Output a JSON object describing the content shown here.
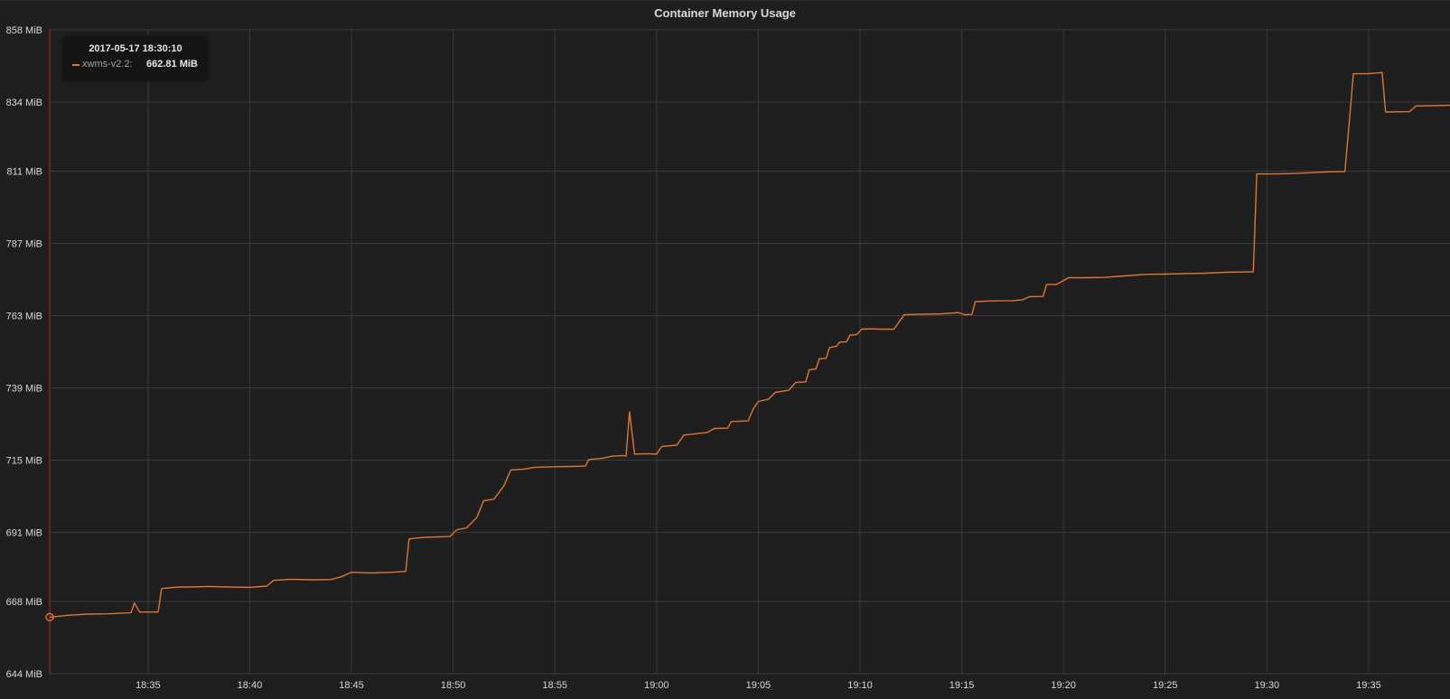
{
  "panel": {
    "title": "Container Memory Usage"
  },
  "colors": {
    "background": "#1f1e1f",
    "grid": "#3b3b3d",
    "axis_text": "#d8d9da",
    "series": "#e0752d",
    "threshold": "#b4202a"
  },
  "tooltip": {
    "time": "2017-05-17 18:30:10",
    "series_label": "xwms-v2.2:",
    "value": "662.81 MiB"
  },
  "chart_data": {
    "type": "line",
    "title": "Container Memory Usage",
    "xlabel": "",
    "ylabel": "",
    "y_unit": "MiB",
    "ylim": [
      644,
      858
    ],
    "xlim": [
      "18:30:10",
      "19:39:00"
    ],
    "grid": true,
    "legend": "hidden",
    "y_ticks": [
      "644 MiB",
      "668 MiB",
      "691 MiB",
      "715 MiB",
      "739 MiB",
      "763 MiB",
      "787 MiB",
      "811 MiB",
      "834 MiB",
      "858 MiB"
    ],
    "y_tick_values": [
      644,
      668,
      691,
      715,
      739,
      763,
      787,
      811,
      834,
      858
    ],
    "x_ticks": [
      "18:35",
      "18:40",
      "18:45",
      "18:50",
      "18:55",
      "19:00",
      "19:05",
      "19:10",
      "19:15",
      "19:20",
      "19:25",
      "19:30",
      "19:35"
    ],
    "series": [
      {
        "name": "xwms-v2.2",
        "points": [
          [
            "18:30:10",
            662.8
          ],
          [
            "18:31:00",
            663.4
          ],
          [
            "18:32:00",
            663.8
          ],
          [
            "18:33:00",
            663.9
          ],
          [
            "18:34:00",
            664.2
          ],
          [
            "18:34:10",
            664.3
          ],
          [
            "18:34:20",
            667.5
          ],
          [
            "18:34:35",
            664.5
          ],
          [
            "18:35:30",
            664.5
          ],
          [
            "18:35:40",
            672.3
          ],
          [
            "18:36:30",
            672.8
          ],
          [
            "18:37:00",
            672.8
          ],
          [
            "18:38:00",
            673.0
          ],
          [
            "18:39:00",
            672.8
          ],
          [
            "18:40:00",
            672.7
          ],
          [
            "18:40:50",
            673.1
          ],
          [
            "18:41:10",
            675.0
          ],
          [
            "18:42:00",
            675.4
          ],
          [
            "18:43:00",
            675.2
          ],
          [
            "18:44:00",
            675.3
          ],
          [
            "18:44:30",
            676.2
          ],
          [
            "18:45:00",
            677.7
          ],
          [
            "18:46:00",
            677.5
          ],
          [
            "18:47:00",
            677.7
          ],
          [
            "18:47:40",
            678.0
          ],
          [
            "18:47:50",
            688.8
          ],
          [
            "18:48:30",
            689.3
          ],
          [
            "18:49:00",
            689.4
          ],
          [
            "18:49:50",
            689.6
          ],
          [
            "18:50:10",
            691.8
          ],
          [
            "18:50:40",
            692.5
          ],
          [
            "18:51:10",
            696.0
          ],
          [
            "18:51:30",
            701.5
          ],
          [
            "18:52:00",
            702.0
          ],
          [
            "18:52:30",
            706.5
          ],
          [
            "18:52:50",
            711.7
          ],
          [
            "18:53:30",
            712.0
          ],
          [
            "18:54:00",
            712.6
          ],
          [
            "18:55:00",
            712.8
          ],
          [
            "18:56:00",
            712.9
          ],
          [
            "18:56:30",
            713.0
          ],
          [
            "18:56:40",
            715.2
          ],
          [
            "18:57:20",
            715.6
          ],
          [
            "18:57:50",
            716.3
          ],
          [
            "18:58:20",
            716.5
          ],
          [
            "18:58:30",
            716.3
          ],
          [
            "18:58:40",
            731.0
          ],
          [
            "18:58:55",
            717.0
          ],
          [
            "18:59:30",
            717.1
          ],
          [
            "19:00:00",
            717.0
          ],
          [
            "19:00:15",
            719.5
          ],
          [
            "19:01:00",
            720.0
          ],
          [
            "19:01:20",
            723.3
          ],
          [
            "19:02:00",
            723.8
          ],
          [
            "19:02:30",
            724.2
          ],
          [
            "19:02:50",
            725.5
          ],
          [
            "19:03:30",
            725.6
          ],
          [
            "19:03:40",
            727.8
          ],
          [
            "19:04:30",
            728.0
          ],
          [
            "19:04:45",
            732.0
          ],
          [
            "19:05:00",
            734.5
          ],
          [
            "19:05:30",
            735.2
          ],
          [
            "19:05:50",
            737.5
          ],
          [
            "19:06:30",
            738.2
          ],
          [
            "19:06:50",
            740.8
          ],
          [
            "19:07:20",
            741.0
          ],
          [
            "19:07:30",
            745.0
          ],
          [
            "19:07:50",
            745.3
          ],
          [
            "19:08:00",
            748.7
          ],
          [
            "19:08:20",
            748.8
          ],
          [
            "19:08:30",
            752.4
          ],
          [
            "19:08:50",
            752.8
          ],
          [
            "19:09:00",
            754.2
          ],
          [
            "19:09:20",
            754.3
          ],
          [
            "19:09:30",
            756.5
          ],
          [
            "19:09:50",
            756.7
          ],
          [
            "19:10:05",
            758.5
          ],
          [
            "19:10:30",
            758.6
          ],
          [
            "19:11:00",
            758.5
          ],
          [
            "19:11:40",
            758.5
          ],
          [
            "19:12:10",
            763.3
          ],
          [
            "19:13:00",
            763.5
          ],
          [
            "19:14:00",
            763.6
          ],
          [
            "19:14:50",
            764.0
          ],
          [
            "19:15:10",
            763.3
          ],
          [
            "19:15:30",
            763.4
          ],
          [
            "19:15:40",
            767.7
          ],
          [
            "19:16:30",
            767.9
          ],
          [
            "19:17:30",
            768.0
          ],
          [
            "19:18:00",
            768.3
          ],
          [
            "19:18:20",
            769.3
          ],
          [
            "19:19:00",
            769.4
          ],
          [
            "19:19:10",
            773.4
          ],
          [
            "19:19:40",
            773.4
          ],
          [
            "19:20:15",
            775.6
          ],
          [
            "19:21:00",
            775.6
          ],
          [
            "19:22:00",
            775.7
          ],
          [
            "19:23:00",
            776.2
          ],
          [
            "19:24:00",
            776.7
          ],
          [
            "19:25:00",
            776.8
          ],
          [
            "19:26:00",
            777.0
          ],
          [
            "19:27:00",
            777.1
          ],
          [
            "19:28:00",
            777.4
          ],
          [
            "19:29:20",
            777.6
          ],
          [
            "19:29:30",
            810.1
          ],
          [
            "19:30:30",
            810.1
          ],
          [
            "19:31:30",
            810.3
          ],
          [
            "19:33:00",
            810.8
          ],
          [
            "19:33:50",
            810.9
          ],
          [
            "19:34:05",
            830.0
          ],
          [
            "19:34:15",
            843.4
          ],
          [
            "19:35:00",
            843.4
          ],
          [
            "19:35:40",
            843.8
          ],
          [
            "19:35:50",
            830.7
          ],
          [
            "19:37:00",
            830.8
          ],
          [
            "19:37:20",
            832.7
          ],
          [
            "19:38:00",
            832.8
          ],
          [
            "19:39:00",
            832.9
          ]
        ]
      }
    ]
  }
}
